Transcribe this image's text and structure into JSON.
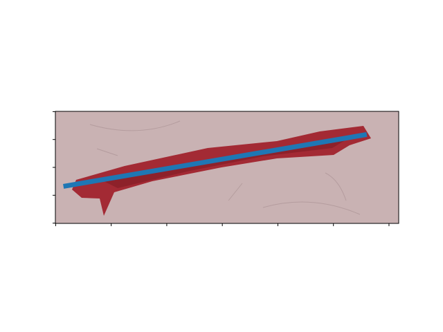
{
  "chart_data": {
    "type": "line",
    "x": [
      14,
      560
    ],
    "values": [
      134,
      41
    ],
    "color": "#1f77b4",
    "xlim": [
      -0.5,
      617.5
    ],
    "ylim": [
      200.5,
      -0.5
    ],
    "xticks": [
      0,
      100,
      200,
      300,
      400,
      500,
      600
    ],
    "yticks": [
      0,
      50,
      100,
      150,
      200
    ],
    "tick_labels": false
  }
}
